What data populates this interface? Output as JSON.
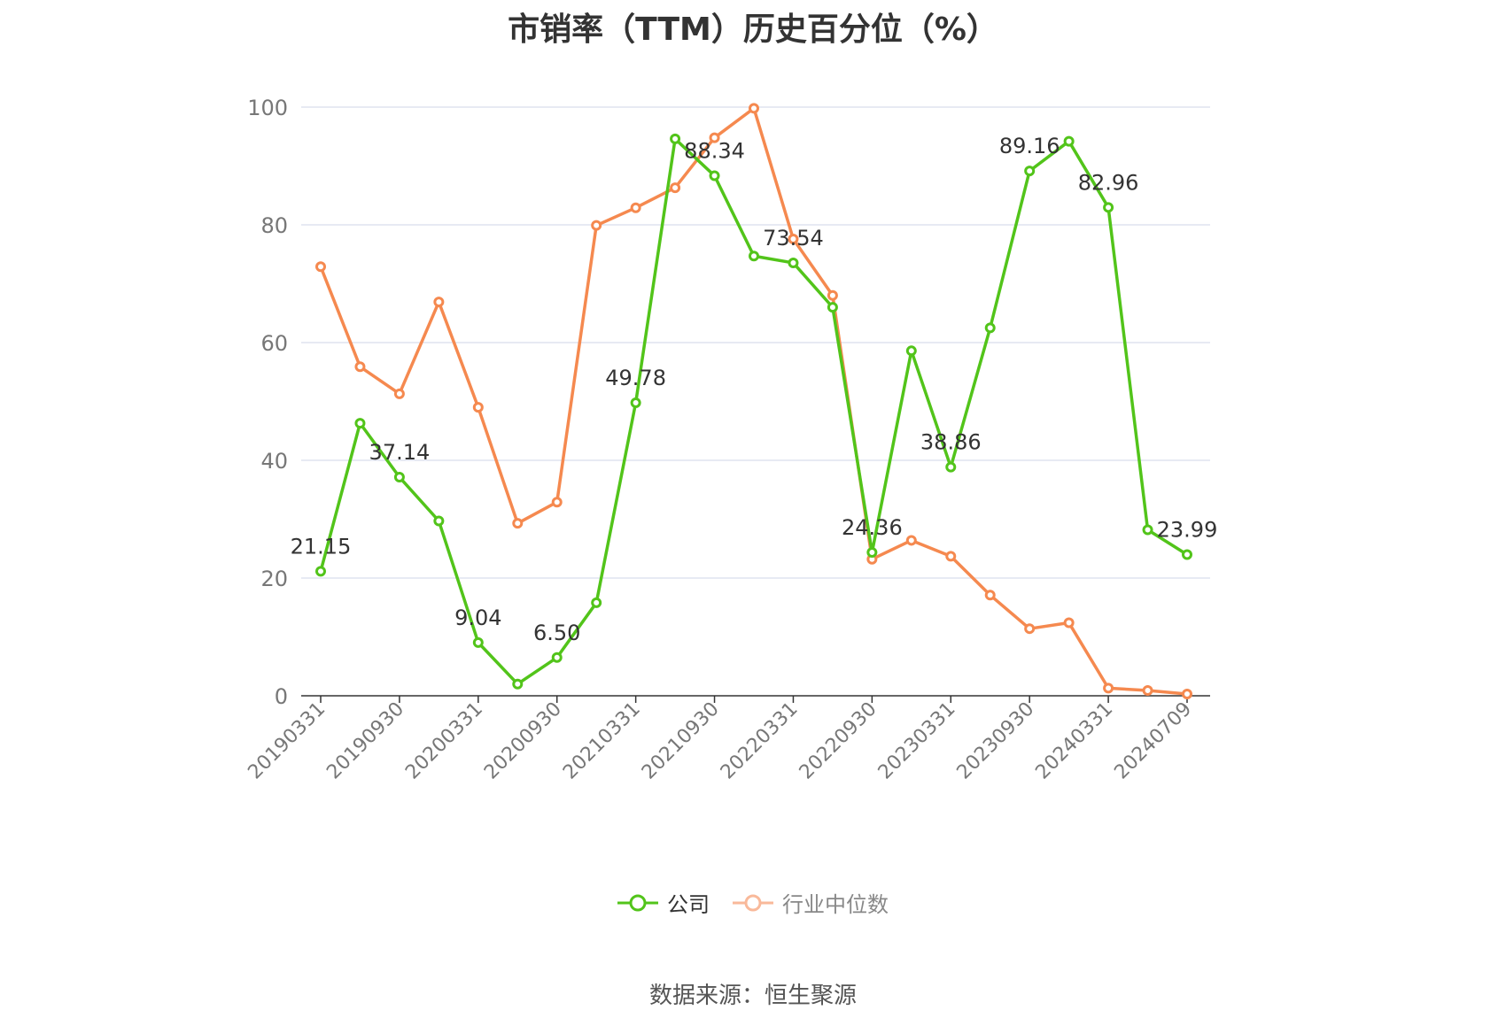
{
  "chart_data": {
    "type": "line",
    "title": "市销率（TTM）历史百分位（%）",
    "xlabel": "",
    "ylabel": "",
    "ylim": [
      0,
      100
    ],
    "yticks": [
      0,
      20,
      40,
      60,
      80,
      100
    ],
    "grid": true,
    "legend_position": "bottom",
    "x": [
      "20190331",
      "20190630",
      "20190930",
      "20191231",
      "20200331",
      "20200630",
      "20200930",
      "20201231",
      "20210331",
      "20210630",
      "20210930",
      "20211231",
      "20220331",
      "20220630",
      "20220930",
      "20221231",
      "20230331",
      "20230630",
      "20230930",
      "20231231",
      "20240331",
      "20240630",
      "20240709"
    ],
    "xtick_labels": [
      "20190331",
      "20190930",
      "20200331",
      "20200930",
      "20210331",
      "20210930",
      "20220331",
      "20220930",
      "20230331",
      "20230930",
      "20240331",
      "20240709"
    ],
    "series": [
      {
        "name": "公司",
        "color": "#52c41a",
        "values": [
          21.15,
          46.3,
          37.14,
          29.7,
          9.04,
          2.0,
          6.5,
          15.8,
          49.78,
          94.6,
          88.34,
          74.7,
          73.54,
          66.0,
          24.36,
          58.6,
          38.86,
          62.5,
          89.16,
          94.2,
          82.96,
          28.2,
          23.99
        ],
        "labels": [
          "21.15",
          "",
          "37.14",
          "",
          "9.04",
          "",
          "6.50",
          "",
          "49.78",
          "",
          "88.34",
          "",
          "73.54",
          "",
          "24.36",
          "",
          "38.86",
          "",
          "89.16",
          "",
          "82.96",
          "",
          "23.99"
        ]
      },
      {
        "name": "行业中位数",
        "color": "#f5894f",
        "values": [
          72.9,
          55.9,
          51.3,
          66.9,
          49.0,
          29.3,
          32.9,
          79.9,
          82.9,
          86.3,
          94.8,
          99.8,
          77.6,
          68.0,
          23.2,
          26.4,
          23.7,
          17.1,
          11.4,
          12.4,
          1.3,
          0.9,
          0.3
        ]
      }
    ]
  },
  "legend": {
    "company_label": "公司",
    "industry_label": "行业中位数"
  },
  "source_note": "数据来源：恒生聚源"
}
